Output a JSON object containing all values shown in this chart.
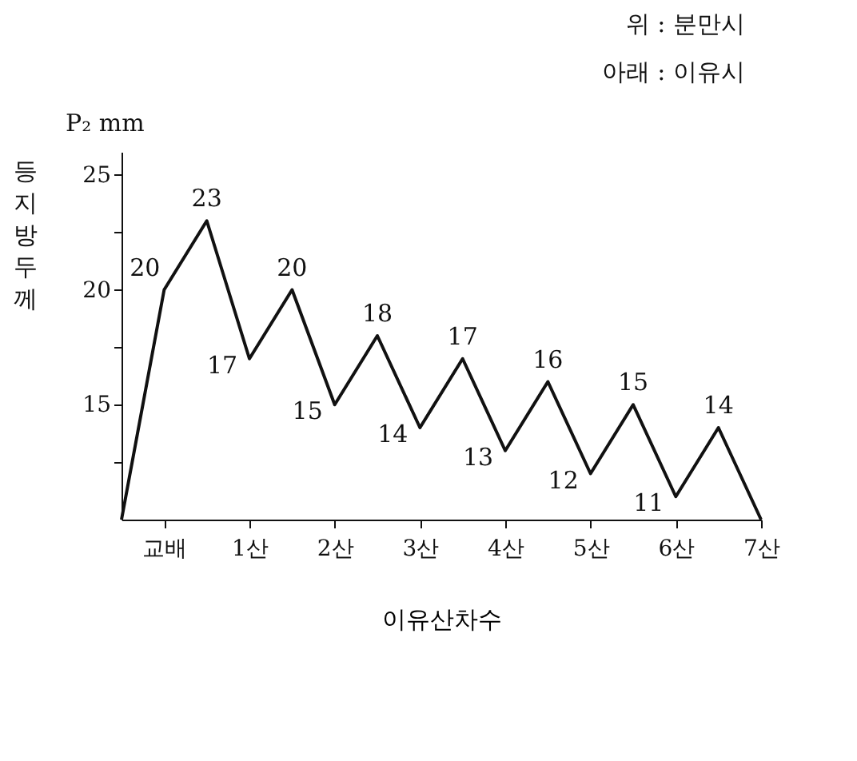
{
  "chart_data": {
    "type": "line",
    "xlabel": "이유산차수",
    "ylabel": "등지방두께",
    "annotations": [
      "위 : 분만시",
      "아래 : 이유시",
      "P₂ mm"
    ],
    "categories": [
      null,
      "교배",
      null,
      "1산",
      null,
      "2산",
      null,
      "3산",
      null,
      "4산",
      null,
      "5산",
      null,
      "6산",
      null,
      "7산"
    ],
    "series": [
      {
        "color": "#111111",
        "values": [
          10,
          20,
          23,
          17,
          20,
          15,
          18,
          14,
          17,
          13,
          16,
          12,
          15,
          11,
          14,
          10
        ],
        "value_labels": [
          null,
          "20",
          "23",
          "17",
          "20",
          "15",
          "18",
          "14",
          "17",
          "13",
          "16",
          "12",
          "15",
          "11",
          "14",
          null
        ]
      }
    ],
    "ylim": [
      10,
      26
    ],
    "yticks": [
      {
        "value": 12.5,
        "label": null
      },
      15,
      {
        "value": 17.5,
        "label": null
      },
      20,
      {
        "value": 22.5,
        "label": null
      },
      25
    ],
    "grid": false,
    "legend": false,
    "marker": "none",
    "line_style": "solid"
  }
}
